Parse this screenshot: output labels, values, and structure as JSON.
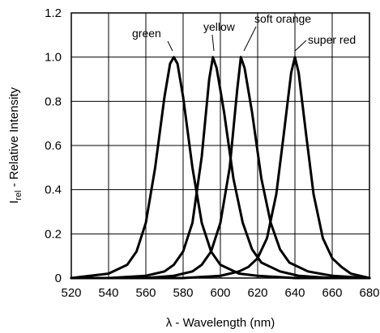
{
  "chart_data": {
    "type": "line",
    "xlabel": "λ - Wavelength (nm)",
    "ylabel_main": "I",
    "ylabel_sub": "rel",
    "ylabel_rest": " - Relative Intensity",
    "xlim": [
      520,
      680
    ],
    "ylim": [
      0,
      1.2
    ],
    "grid": true,
    "x_ticks": [
      520,
      540,
      560,
      580,
      600,
      620,
      640,
      660,
      680
    ],
    "x_tick_labels": [
      "520",
      "540",
      "560",
      "580",
      "600",
      "620",
      "640",
      "660",
      "680"
    ],
    "y_ticks": [
      0,
      0.2,
      0.4,
      0.6,
      0.8,
      1.0,
      1.2
    ],
    "y_tick_labels": [
      "0",
      "0.2",
      "0.4",
      "0.6",
      "0.8",
      "1.0",
      "1.2"
    ],
    "series": [
      {
        "name": "green",
        "x": [
          520,
          530,
          540,
          550,
          555,
          560,
          565,
          570,
          573,
          575,
          577,
          580,
          585,
          590,
          595,
          600,
          610,
          620,
          640,
          660,
          680
        ],
        "values": [
          0.0,
          0.01,
          0.02,
          0.06,
          0.12,
          0.25,
          0.5,
          0.82,
          0.97,
          1.0,
          0.97,
          0.82,
          0.5,
          0.25,
          0.12,
          0.06,
          0.02,
          0.01,
          0.0,
          0.0,
          0.0
        ]
      },
      {
        "name": "yellow",
        "x": [
          520,
          540,
          560,
          570,
          575,
          580,
          585,
          590,
          594,
          596,
          598,
          602,
          607,
          612,
          617,
          622,
          632,
          642,
          660,
          680
        ],
        "values": [
          0.0,
          0.0,
          0.01,
          0.03,
          0.06,
          0.12,
          0.25,
          0.55,
          0.9,
          1.0,
          0.95,
          0.75,
          0.45,
          0.25,
          0.13,
          0.07,
          0.03,
          0.01,
          0.0,
          0.0
        ]
      },
      {
        "name": "soft orange",
        "x": [
          520,
          540,
          560,
          575,
          585,
          590,
          595,
          600,
          605,
          609,
          611,
          613,
          617,
          622,
          627,
          632,
          637,
          647,
          660,
          680
        ],
        "values": [
          0.0,
          0.0,
          0.0,
          0.01,
          0.03,
          0.06,
          0.12,
          0.25,
          0.5,
          0.85,
          1.0,
          0.95,
          0.75,
          0.45,
          0.25,
          0.13,
          0.07,
          0.03,
          0.01,
          0.0
        ]
      },
      {
        "name": "super red",
        "x": [
          520,
          560,
          580,
          600,
          610,
          615,
          620,
          625,
          630,
          634,
          638,
          640,
          642,
          646,
          650,
          655,
          660,
          665,
          670,
          680
        ],
        "values": [
          0.0,
          0.0,
          0.0,
          0.01,
          0.03,
          0.05,
          0.09,
          0.18,
          0.38,
          0.65,
          0.93,
          1.0,
          0.93,
          0.65,
          0.38,
          0.18,
          0.09,
          0.05,
          0.02,
          0.0
        ]
      }
    ]
  }
}
